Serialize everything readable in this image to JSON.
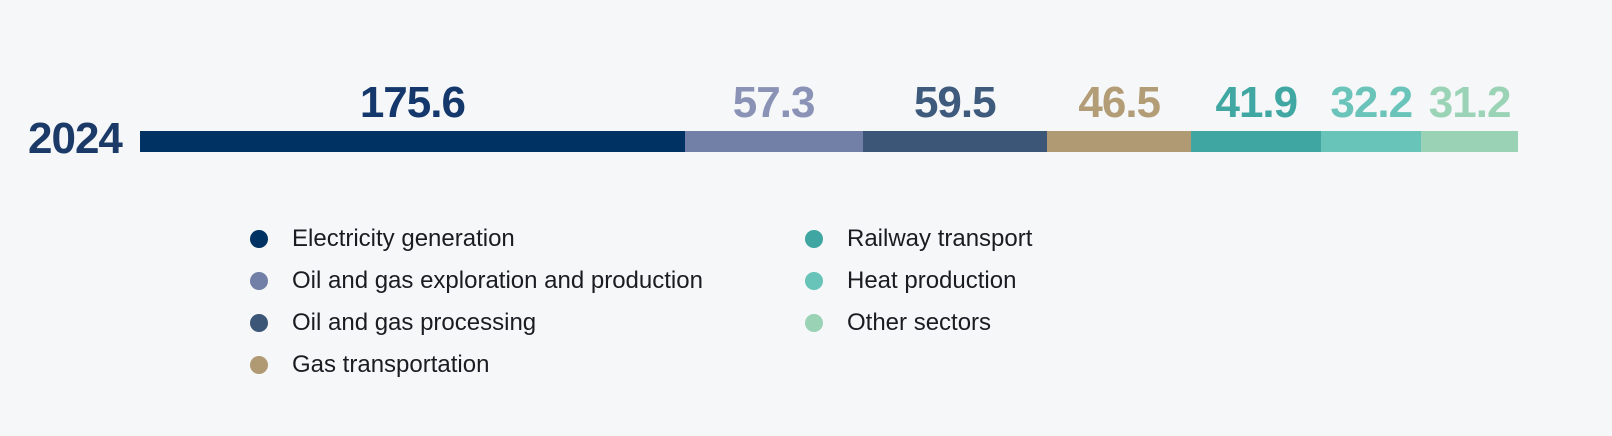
{
  "chart_data": {
    "type": "bar",
    "orientation": "horizontal-stacked",
    "row_label": "2024",
    "value_format": "one-decimal",
    "grid": false,
    "legend_position": "bottom",
    "legend_column_split": [
      4,
      3
    ],
    "series": [
      {
        "name": "Electricity generation",
        "value": 175.6,
        "color": "#003263",
        "label_color": "#14386b"
      },
      {
        "name": "Oil and gas exploration and production",
        "value": 57.3,
        "color": "#727fa6",
        "label_color": "#8a92b6"
      },
      {
        "name": "Oil and gas processing",
        "value": 59.5,
        "color": "#3b5677",
        "label_color": "#3e5a7d"
      },
      {
        "name": "Gas transportation",
        "value": 46.5,
        "color": "#b09a74",
        "label_color": "#b39d77"
      },
      {
        "name": "Railway transport",
        "value": 41.9,
        "color": "#3fa6a2",
        "label_color": "#41a7a3"
      },
      {
        "name": "Heat production",
        "value": 32.2,
        "color": "#68c3b9",
        "label_color": "#6ac4ba"
      },
      {
        "name": "Other sectors",
        "value": 31.2,
        "color": "#99d2b5",
        "label_color": "#9bd3b7"
      }
    ]
  },
  "colors": {
    "background": "#f6f7f9",
    "year_label": "#1b3a68",
    "legend_text": "#1b1c21"
  }
}
